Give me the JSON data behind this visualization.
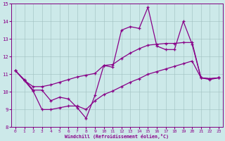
{
  "xlabel": "Windchill (Refroidissement éolien,°C)",
  "background_color": "#cce9e9",
  "line_color": "#880088",
  "grid_color": "#9fbfbf",
  "x_values": [
    0,
    1,
    2,
    3,
    4,
    5,
    6,
    7,
    8,
    9,
    10,
    11,
    12,
    13,
    14,
    15,
    16,
    17,
    18,
    19,
    20,
    21,
    22,
    23
  ],
  "line_main": [
    11.2,
    10.7,
    10.1,
    10.1,
    9.5,
    9.7,
    9.6,
    9.1,
    8.5,
    9.8,
    11.5,
    11.4,
    13.5,
    13.7,
    13.6,
    14.8,
    12.6,
    12.4,
    12.4,
    14.0,
    12.7,
    10.8,
    10.7,
    10.8
  ],
  "line_upper": [
    11.2,
    10.65,
    10.3,
    10.3,
    10.4,
    10.55,
    10.7,
    10.85,
    10.95,
    11.05,
    11.5,
    11.55,
    11.9,
    12.2,
    12.45,
    12.65,
    12.7,
    12.75,
    12.75,
    12.8,
    12.8,
    10.8,
    10.75,
    10.8
  ],
  "line_lower": [
    11.2,
    10.65,
    10.05,
    9.0,
    9.0,
    9.1,
    9.2,
    9.2,
    9.0,
    9.5,
    9.85,
    10.05,
    10.3,
    10.55,
    10.75,
    11.0,
    11.15,
    11.3,
    11.45,
    11.6,
    11.75,
    10.8,
    10.75,
    10.8
  ],
  "ylim": [
    8,
    15
  ],
  "xlim_min": -0.5,
  "xlim_max": 23.5,
  "yticks": [
    8,
    9,
    10,
    11,
    12,
    13,
    14,
    15
  ],
  "xticks": [
    0,
    1,
    2,
    3,
    4,
    5,
    6,
    7,
    8,
    9,
    10,
    11,
    12,
    13,
    14,
    15,
    16,
    17,
    18,
    19,
    20,
    21,
    22,
    23
  ]
}
